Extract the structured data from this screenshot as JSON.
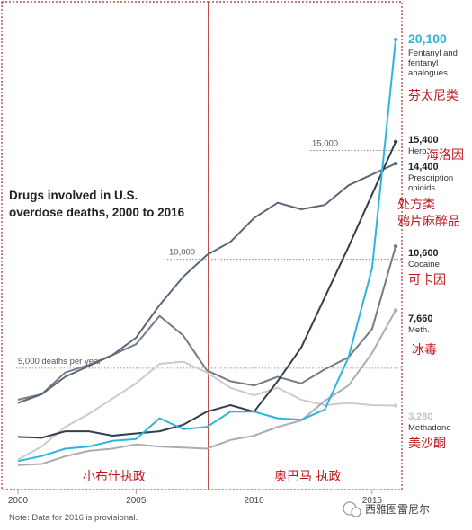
{
  "chart_data": {
    "type": "line",
    "title": "Drugs involved in U.S. overdose deaths, 2000 to 2016",
    "x": [
      2000,
      2001,
      2002,
      2003,
      2004,
      2005,
      2006,
      2007,
      2008,
      2009,
      2010,
      2011,
      2012,
      2013,
      2014,
      2015,
      2016
    ],
    "xlim": [
      2000,
      2016.3
    ],
    "ylim": [
      0,
      20100
    ],
    "x_ticks": [
      "2000",
      "2005",
      "2010",
      "2015"
    ],
    "gridlines": [
      {
        "value": 5000,
        "label": "5,000 deaths per year"
      },
      {
        "value": 10000,
        "label": "10,000"
      },
      {
        "value": 15000,
        "label": "15,000"
      }
    ],
    "series": [
      {
        "name": "Fentanyl and fentanyl analogues",
        "cn": "芬太尼类",
        "end_value": "20,100",
        "color": "#2bb5df",
        "values": [
          730,
          960,
          1300,
          1400,
          1660,
          1740,
          2700,
          2200,
          2300,
          3000,
          3000,
          2700,
          2630,
          3100,
          5500,
          9600,
          20100
        ]
      },
      {
        "name": "Heroin",
        "cn": "海洛因",
        "end_value": "15,400",
        "color": "#333f4b",
        "values": [
          1840,
          1800,
          2100,
          2100,
          1900,
          2000,
          2100,
          2400,
          3000,
          3300,
          3000,
          4400,
          5950,
          8260,
          10570,
          12990,
          15400
        ]
      },
      {
        "name": "Prescription opioids",
        "cn": "处方类\n鸦片麻醉品",
        "end_value": "14,400",
        "color": "#5a6778",
        "values": [
          3400,
          3800,
          4600,
          5100,
          5600,
          6400,
          7900,
          9200,
          10200,
          10800,
          11900,
          12600,
          12300,
          12500,
          13400,
          13900,
          14400
        ]
      },
      {
        "name": "Cocaine",
        "cn": "可卡因",
        "end_value": "10,600",
        "color": "#767c86",
        "values": [
          3550,
          3800,
          4800,
          5150,
          5600,
          6100,
          7400,
          6500,
          4900,
          4400,
          4200,
          4600,
          4300,
          4950,
          5500,
          6800,
          10600
        ]
      },
      {
        "name": "Meth.",
        "cn": "冰毒",
        "end_value": "7,660",
        "color": "#a9aeb5",
        "values": [
          550,
          600,
          950,
          1200,
          1300,
          1500,
          1400,
          1350,
          1300,
          1700,
          1900,
          2300,
          2600,
          3500,
          4200,
          5700,
          7660
        ]
      },
      {
        "name": "Methadone",
        "cn": "美沙酮",
        "end_value": "3,280",
        "color": "#cbcbcb",
        "values": [
          800,
          1400,
          2300,
          2900,
          3600,
          4300,
          5200,
          5300,
          4800,
          4100,
          3750,
          4100,
          3550,
          3300,
          3400,
          3300,
          3280
        ]
      }
    ],
    "annotations": {
      "bush_label": "小布什执政",
      "obama_label": "奥巴马 执政",
      "note": "Note: Data for 2016 is provisional.",
      "watermark": "西雅图雷尼尔"
    }
  }
}
